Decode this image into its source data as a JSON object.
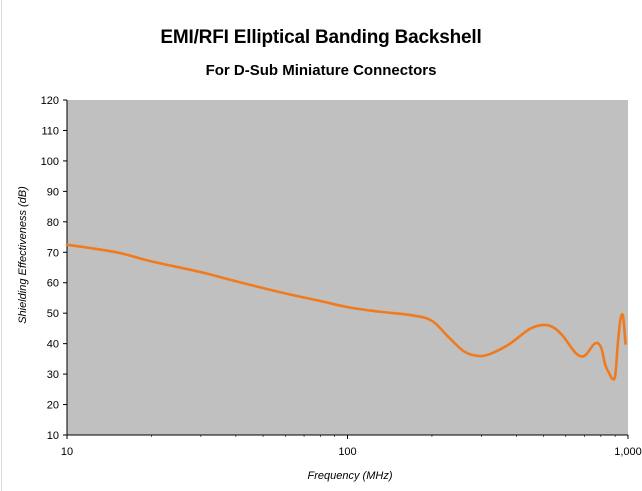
{
  "chart_data": {
    "type": "line",
    "title": "EMI/RFI Elliptical Banding Backshell",
    "subtitle": "For D-Sub Miniature Connectors",
    "xlabel": "Frequency (MHz)",
    "ylabel": "Shielding Effectiveness (dB)",
    "x_scale": "log",
    "xlim": [
      10,
      1000
    ],
    "ylim": [
      10,
      120
    ],
    "x_ticks": [
      10,
      100,
      1000
    ],
    "x_tick_labels": [
      "10",
      "100",
      "1,000"
    ],
    "y_ticks": [
      10,
      20,
      30,
      40,
      50,
      60,
      70,
      80,
      90,
      100,
      110,
      120
    ],
    "grid": false,
    "legend": "none",
    "plot_background": "#c0c0c0",
    "line_color": "#f07a1e",
    "series": [
      {
        "x": [
          10,
          15,
          20,
          30,
          40,
          60,
          80,
          100,
          130,
          170,
          200,
          230,
          260,
          290,
          320,
          380,
          450,
          520,
          580,
          650,
          700,
          760,
          800,
          830,
          860,
          880,
          900,
          920,
          940,
          960,
          980
        ],
        "y": [
          72.5,
          70,
          67,
          63.5,
          60.5,
          56.5,
          54,
          52,
          50.5,
          49.3,
          47.5,
          42,
          37.5,
          36,
          36.5,
          40,
          45,
          46,
          43,
          37,
          36,
          40,
          39,
          33,
          30,
          28.5,
          29.5,
          40,
          48,
          49,
          40
        ]
      }
    ]
  }
}
